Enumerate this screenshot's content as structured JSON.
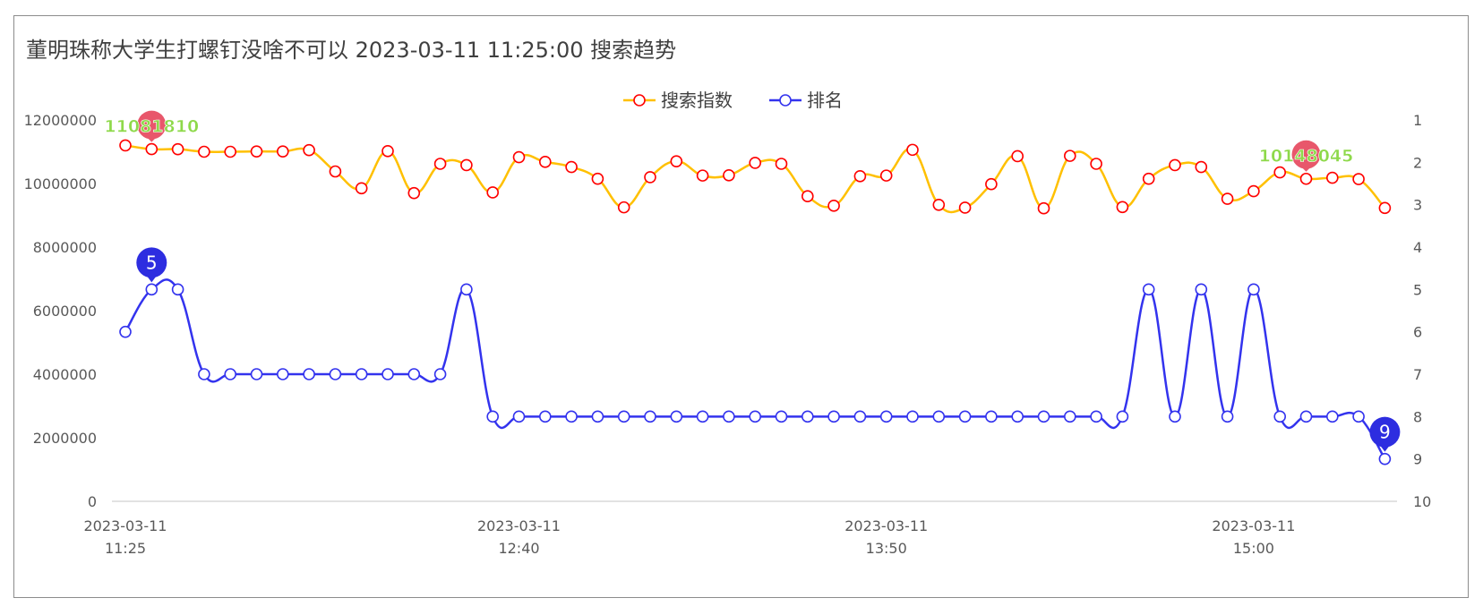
{
  "title": "董明珠称大学生打螺钉没啥不可以 2023-03-11 11:25:00 搜索趋势",
  "chart_data": {
    "type": "line",
    "title": "董明珠称大学生打螺钉没啥不可以 2023-03-11 11:25:00 搜索趋势",
    "x_labels": [
      {
        "index": 0,
        "date": "2023-03-11",
        "time": "11:25"
      },
      {
        "index": 15,
        "date": "2023-03-11",
        "time": "12:40"
      },
      {
        "index": 29,
        "date": "2023-03-11",
        "time": "13:50"
      },
      {
        "index": 43,
        "date": "2023-03-11",
        "time": "15:00"
      }
    ],
    "y_left": {
      "min": 0,
      "max": 12000000,
      "ticks": [
        "0",
        "2000000",
        "4000000",
        "6000000",
        "8000000",
        "10000000",
        "12000000"
      ]
    },
    "y_right": {
      "min": 1,
      "max": 10,
      "inverted": true,
      "ticks": [
        "1",
        "2",
        "3",
        "4",
        "5",
        "6",
        "7",
        "8",
        "9",
        "10"
      ]
    },
    "legend": {
      "position": "top-center"
    },
    "series": [
      {
        "name": "搜索指数",
        "axis": "left",
        "color": "#ffc000",
        "marker_color": "#ff0000",
        "values": [
          11200000,
          11081810,
          11080000,
          11000000,
          11000000,
          11010000,
          11010000,
          11050000,
          10380000,
          9850000,
          11020000,
          9700000,
          10620000,
          10580000,
          9720000,
          10830000,
          10680000,
          10520000,
          10150000,
          9250000,
          10200000,
          10700000,
          10250000,
          10260000,
          10650000,
          10620000,
          9600000,
          9300000,
          10230000,
          10250000,
          11060000,
          9330000,
          9240000,
          9980000,
          10860000,
          9220000,
          10870000,
          10620000,
          9260000,
          10150000,
          10580000,
          10520000,
          9520000,
          9760000,
          10350000,
          10148045,
          10180000,
          10140000,
          9230000
        ],
        "annotations": [
          {
            "index": 1,
            "label": "11081810"
          },
          {
            "index": 45,
            "label": "10148045"
          }
        ]
      },
      {
        "name": "排名",
        "axis": "right",
        "color": "#3333ee",
        "marker_color": "#3333ee",
        "values": [
          6,
          5,
          5,
          7,
          7,
          7,
          7,
          7,
          7,
          7,
          7,
          7,
          7,
          5,
          8,
          8,
          8,
          8,
          8,
          8,
          8,
          8,
          8,
          8,
          8,
          8,
          8,
          8,
          8,
          8,
          8,
          8,
          8,
          8,
          8,
          8,
          8,
          8,
          8,
          5,
          8,
          5,
          8,
          5,
          8,
          8,
          8,
          8,
          9
        ],
        "annotations": [
          {
            "index": 1,
            "label": "5"
          },
          {
            "index": 48,
            "label": "9"
          }
        ]
      }
    ]
  }
}
